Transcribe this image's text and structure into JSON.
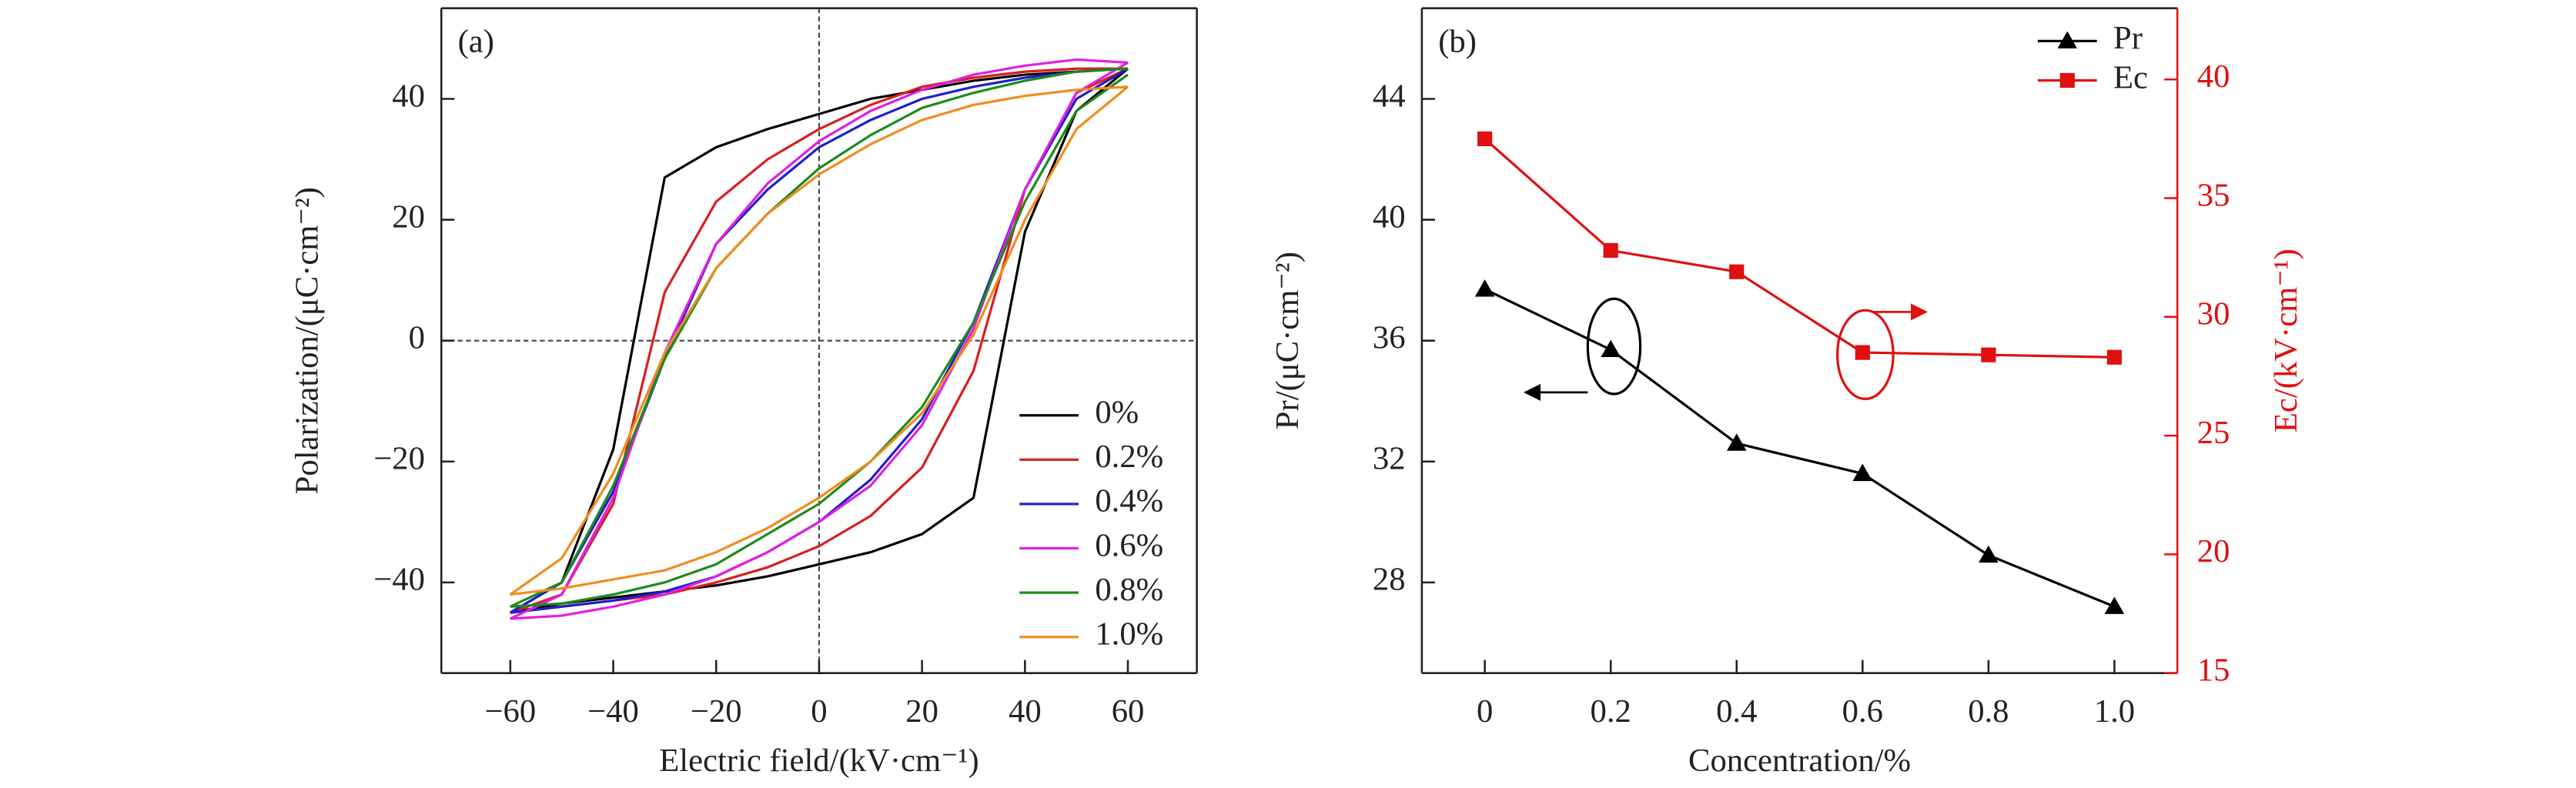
{
  "chart_data": [
    {
      "type": "line",
      "panel": "(a)",
      "xlabel": "Electric field/(kV·cm⁻¹)",
      "ylabel": "Polarization/(μC·cm⁻²)",
      "x": [
        60,
        50,
        40,
        30,
        20,
        10,
        0,
        -10,
        -20,
        -30,
        -40,
        -50,
        -60,
        -50,
        -40,
        -30,
        -20,
        -10,
        0,
        10,
        20,
        30,
        40,
        50,
        60
      ],
      "series": [
        {
          "name": "0%",
          "color": "#000000",
          "values": [
            45,
            44.5,
            44,
            43,
            41.5,
            40,
            37.5,
            35,
            32,
            27,
            -18,
            -40,
            -45,
            -43.5,
            -42.5,
            -41.5,
            -40.5,
            -39,
            -37,
            -35,
            -32,
            -26,
            18,
            38,
            45
          ]
        },
        {
          "name": "0.2%",
          "color": "#d81e1e",
          "values": [
            45,
            45,
            44.5,
            43.5,
            42,
            39,
            35,
            30,
            23,
            8,
            -27,
            -42,
            -45,
            -44,
            -43,
            -42,
            -40,
            -37.5,
            -34,
            -29,
            -21,
            -5,
            25,
            41,
            45
          ]
        },
        {
          "name": "0.4%",
          "color": "#1f1fc8",
          "values": [
            45,
            44.5,
            43.5,
            42,
            40,
            36.5,
            32,
            25,
            16,
            -3,
            -25,
            -40,
            -45,
            -44,
            -43,
            -41.5,
            -39,
            -35,
            -30,
            -23,
            -13,
            3,
            25,
            40,
            45
          ]
        },
        {
          "name": "0.6%",
          "color": "#e020e0",
          "values": [
            46,
            46.5,
            45.5,
            44,
            41.5,
            38,
            33,
            26,
            16,
            -2,
            -26,
            -42,
            -46,
            -45.5,
            -44,
            -42,
            -39,
            -35,
            -30,
            -24,
            -14,
            2,
            25,
            41,
            46
          ]
        },
        {
          "name": "0.8%",
          "color": "#1e8a1e",
          "values": [
            45,
            44.5,
            43,
            41,
            38.5,
            34,
            28.5,
            21,
            12,
            -3,
            -24,
            -40,
            -44,
            -43.5,
            -42,
            -40,
            -37,
            -32,
            -27,
            -20,
            -11,
            3,
            23,
            38,
            44
          ]
        },
        {
          "name": "1.0%",
          "color": "#f08c1e",
          "values": [
            42,
            41.5,
            40.5,
            39,
            36.5,
            32.5,
            27.5,
            21,
            12,
            -2,
            -22,
            -36,
            -42,
            -41,
            -39.5,
            -38,
            -35,
            -31,
            -26,
            -20,
            -12,
            1,
            20,
            35,
            42
          ]
        }
      ],
      "xlim": [
        -73.4,
        73.4
      ],
      "xticks": [
        {
          "value": -60,
          "label": "−60"
        },
        {
          "value": -40,
          "label": "−40"
        },
        {
          "value": -20,
          "label": "−20"
        },
        0,
        20,
        40,
        60
      ],
      "ylim": [
        -55,
        55
      ],
      "yticks": [
        {
          "value": -40,
          "label": "−40"
        },
        {
          "value": -20,
          "label": "−20"
        },
        0,
        20,
        40
      ],
      "zero_lines": true,
      "legend": "lower right"
    },
    {
      "type": "line",
      "panel": "(b)",
      "xlabel": "Concentration/%",
      "ylabel": "Pr/(μC·cm⁻²)",
      "y2label": "Ec/(kV·cm⁻¹)",
      "x": [
        0,
        0.2,
        0.4,
        0.6,
        0.8,
        1.0
      ],
      "series": [
        {
          "name": "Pr",
          "color": "#000000",
          "marker": "triangle",
          "values": [
            37.7,
            35.7,
            32.6,
            31.6,
            28.9,
            27.2
          ]
        },
        {
          "name": "Ec",
          "color": "#e01010",
          "marker": "square",
          "axis": "y2",
          "values": [
            37.5,
            32.8,
            31.9,
            28.5,
            28.4,
            28.3
          ]
        }
      ],
      "xlim": [
        -0.1,
        1.1
      ],
      "xticks": [
        0,
        0.2,
        0.4,
        0.6,
        0.8,
        {
          "value": 1,
          "label": "1.0"
        }
      ],
      "ylim": [
        25,
        47
      ],
      "yticks": [
        28,
        32,
        36,
        40,
        44
      ],
      "y2lim": [
        15,
        43
      ],
      "y2ticks": [
        15,
        20,
        25,
        30,
        35,
        40
      ],
      "legend": "upper right"
    }
  ]
}
